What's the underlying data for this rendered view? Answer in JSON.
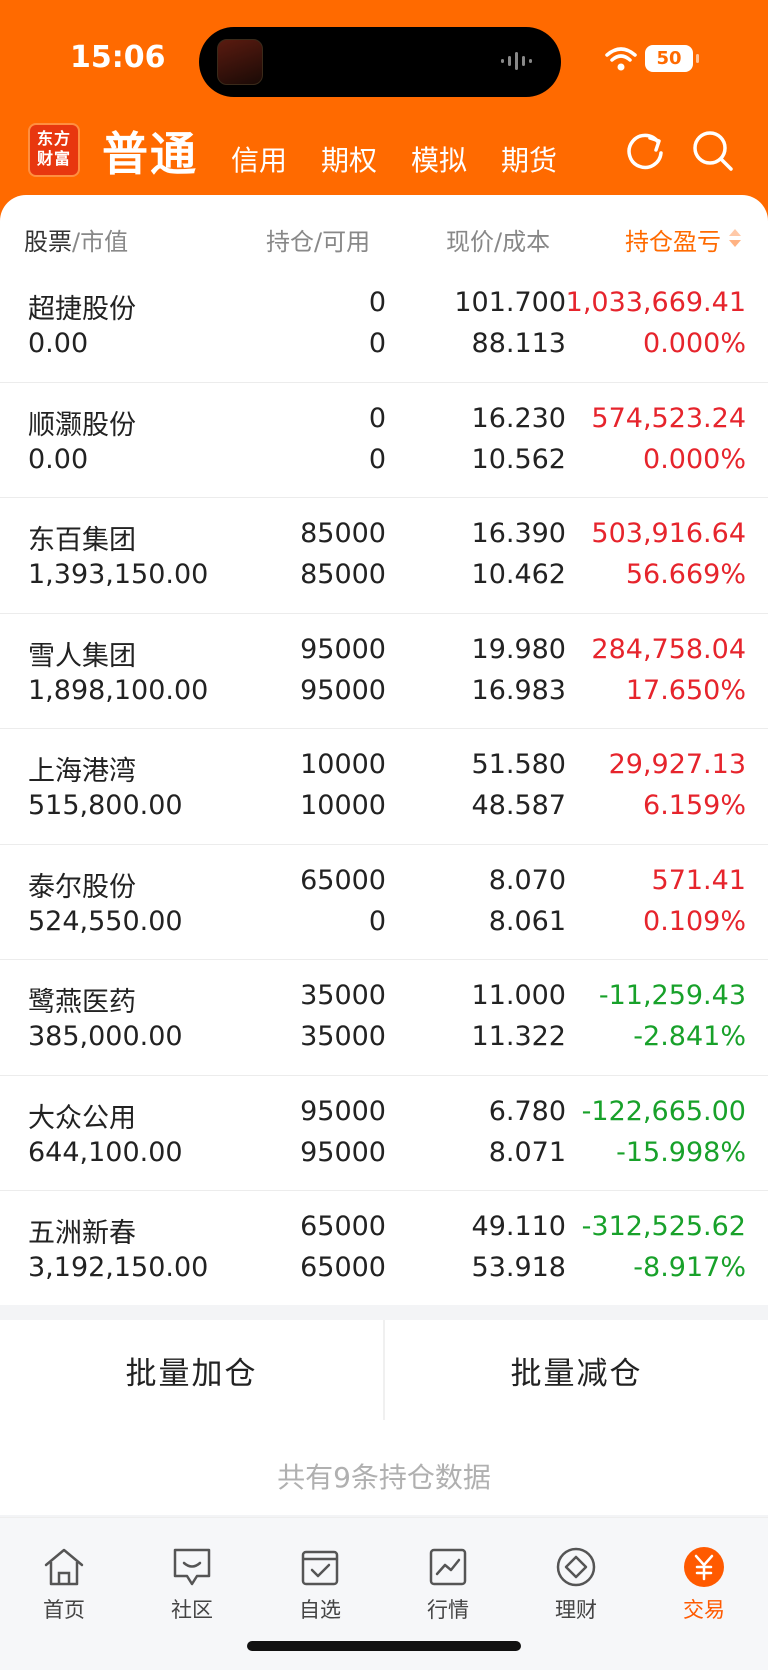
{
  "status": {
    "time": "15:06",
    "battery": "50"
  },
  "header": {
    "logo_line1": "东方",
    "logo_line2": "财富",
    "tabs": [
      "普通",
      "信用",
      "期权",
      "模拟",
      "期货"
    ]
  },
  "columns": {
    "stock": "股票",
    "market_value": "市值",
    "position": "持仓",
    "available": "可用",
    "price": "现价",
    "cost": "成本",
    "pl": "持仓盈亏"
  },
  "holdings": [
    {
      "name": "超捷股份",
      "value": "0.00",
      "position": "0",
      "available": "0",
      "price": "101.700",
      "cost": "88.113",
      "pl": "1,033,669.41",
      "pct": "0.000%",
      "trend": "up"
    },
    {
      "name": "顺灏股份",
      "value": "0.00",
      "position": "0",
      "available": "0",
      "price": "16.230",
      "cost": "10.562",
      "pl": "574,523.24",
      "pct": "0.000%",
      "trend": "up"
    },
    {
      "name": "东百集团",
      "value": "1,393,150.00",
      "position": "85000",
      "available": "85000",
      "price": "16.390",
      "cost": "10.462",
      "pl": "503,916.64",
      "pct": "56.669%",
      "trend": "up"
    },
    {
      "name": "雪人集团",
      "value": "1,898,100.00",
      "position": "95000",
      "available": "95000",
      "price": "19.980",
      "cost": "16.983",
      "pl": "284,758.04",
      "pct": "17.650%",
      "trend": "up"
    },
    {
      "name": "上海港湾",
      "value": "515,800.00",
      "position": "10000",
      "available": "10000",
      "price": "51.580",
      "cost": "48.587",
      "pl": "29,927.13",
      "pct": "6.159%",
      "trend": "up"
    },
    {
      "name": "泰尔股份",
      "value": "524,550.00",
      "position": "65000",
      "available": "0",
      "price": "8.070",
      "cost": "8.061",
      "pl": "571.41",
      "pct": "0.109%",
      "trend": "up"
    },
    {
      "name": "鹭燕医药",
      "value": "385,000.00",
      "position": "35000",
      "available": "35000",
      "price": "11.000",
      "cost": "11.322",
      "pl": "-11,259.43",
      "pct": "-2.841%",
      "trend": "down"
    },
    {
      "name": "大众公用",
      "value": "644,100.00",
      "position": "95000",
      "available": "95000",
      "price": "6.780",
      "cost": "8.071",
      "pl": "-122,665.00",
      "pct": "-15.998%",
      "trend": "down"
    },
    {
      "name": "五洲新春",
      "value": "3,192,150.00",
      "position": "65000",
      "available": "65000",
      "price": "49.110",
      "cost": "53.918",
      "pl": "-312,525.62",
      "pct": "-8.917%",
      "trend": "down"
    }
  ],
  "actions": {
    "add": "批量加仓",
    "reduce": "批量减仓"
  },
  "summary": "共有9条持仓数据",
  "nav": [
    {
      "label": "首页",
      "icon": "home-icon"
    },
    {
      "label": "社区",
      "icon": "community-icon"
    },
    {
      "label": "自选",
      "icon": "watchlist-icon"
    },
    {
      "label": "行情",
      "icon": "market-icon"
    },
    {
      "label": "理财",
      "icon": "wealth-icon"
    },
    {
      "label": "交易",
      "icon": "trade-icon",
      "active": true
    }
  ],
  "colors": {
    "brand": "#ff6a00",
    "up": "#e6242c",
    "down": "#18a12a"
  }
}
